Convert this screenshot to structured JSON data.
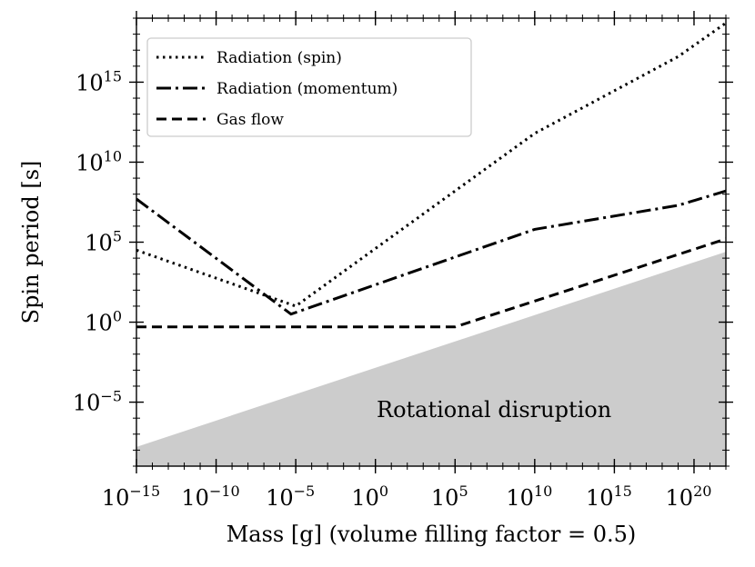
{
  "chart_data": {
    "type": "line",
    "xlabel": "Mass [g] (volume filling factor = 0.5)",
    "ylabel": "Spin period [s]",
    "xscale": "log",
    "yscale": "log",
    "xlim_log10": [
      -15,
      22
    ],
    "ylim_log10": [
      -9,
      19
    ],
    "x_ticks_log10": [
      -15,
      -10,
      -5,
      0,
      5,
      10,
      15,
      20
    ],
    "y_ticks_log10": [
      -5,
      0,
      5,
      10,
      15
    ],
    "tick_base": "10",
    "legend_position": "top-left",
    "series": [
      {
        "name": "Radiation (spin)",
        "style": "dotted",
        "x_log10": [
          -15,
          -5,
          10,
          19,
          22
        ],
        "y_log10": [
          4.5,
          1.0,
          11.8,
          16.6,
          18.7
        ]
      },
      {
        "name": "Radiation (momentum)",
        "style": "dashdot",
        "x_log10": [
          -15,
          -5.3,
          10,
          19,
          22
        ],
        "y_log10": [
          7.7,
          0.5,
          5.8,
          7.3,
          8.2
        ]
      },
      {
        "name": "Gas flow",
        "style": "dashed",
        "x_log10": [
          -15,
          5,
          22
        ],
        "y_log10": [
          -0.3,
          -0.3,
          5.2
        ]
      }
    ],
    "shaded_region": {
      "label": "Rotational disruption",
      "color": "#cccccc",
      "upper_x_log10": [
        -15,
        22
      ],
      "upper_y_log10": [
        -7.8,
        4.4
      ]
    }
  }
}
